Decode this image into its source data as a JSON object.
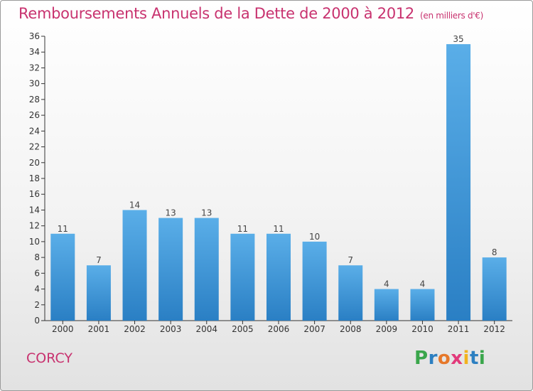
{
  "title": "Remboursements Annuels de la Dette de 2000 à 2012",
  "unit_note": "(en milliers d'€)",
  "commune": "CORCY",
  "logo": {
    "text": "Proxiti",
    "letter_colors": [
      "#3aa64b",
      "#2c7fc1",
      "#e6782a",
      "#e23a7b",
      "#f2b21e",
      "#2c7fc1",
      "#3aa64b"
    ]
  },
  "colors": {
    "accent": "#c8326f",
    "bar_top": "#5aaee8",
    "bar_bottom": "#2a7fc4",
    "axis": "#333333"
  },
  "chart_data": {
    "type": "bar",
    "categories": [
      "2000",
      "2001",
      "2002",
      "2003",
      "2004",
      "2005",
      "2006",
      "2007",
      "2008",
      "2009",
      "2010",
      "2011",
      "2012"
    ],
    "values": [
      11,
      7,
      14,
      13,
      13,
      11,
      11,
      10,
      7,
      4,
      4,
      35,
      8
    ],
    "ylim": [
      0,
      36
    ],
    "yticks": [
      0,
      2,
      4,
      6,
      8,
      10,
      12,
      14,
      16,
      18,
      20,
      22,
      24,
      26,
      28,
      30,
      32,
      34,
      36
    ],
    "grid": false,
    "data_labels": true
  }
}
